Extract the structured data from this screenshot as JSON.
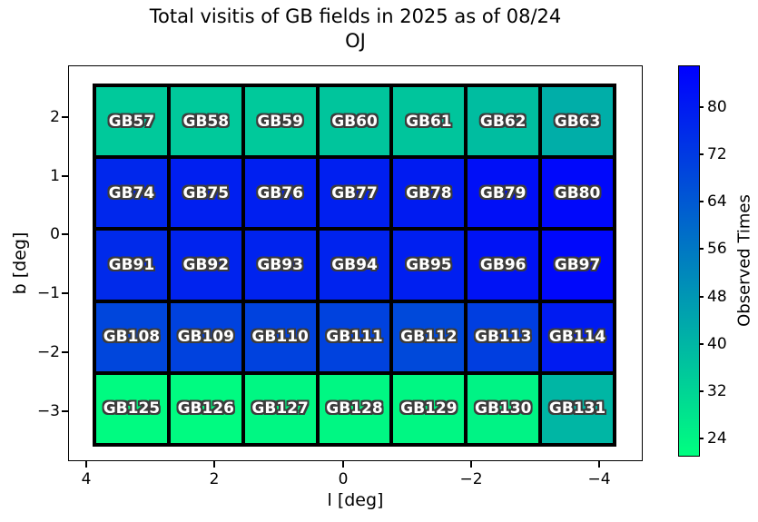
{
  "figure": {
    "title_line1": "Total visitis of GB fields in 2025 as of 08/24",
    "title_line2": "OJ",
    "xlabel": "l [deg]",
    "ylabel": "b [deg]",
    "colorbar_label": "Observed Times"
  },
  "chart_data": {
    "type": "heatmap",
    "title": "Total visitis of GB fields in 2025 as of 08/24 OJ",
    "xlabel": "l [deg]",
    "ylabel": "b [deg]",
    "x_tick_labels": [
      "4",
      "2",
      "0",
      "−2",
      "−4"
    ],
    "y_tick_labels": [
      "2",
      "1",
      "0",
      "−1",
      "−2",
      "−3"
    ],
    "x_axis_inverted": true,
    "grid": {
      "n_rows": 5,
      "n_cols": 7
    },
    "colormap": "winter_r (low=green, high=blue)",
    "color_scale": {
      "vmin": 21,
      "vmax": 87
    },
    "colorbar": {
      "label": "Observed Times",
      "tick_values": [
        80,
        72,
        64,
        56,
        48,
        40,
        32,
        24
      ]
    },
    "rows": [
      {
        "fields": [
          "GB57",
          "GB58",
          "GB59",
          "GB60",
          "GB61",
          "GB62",
          "GB63"
        ],
        "values": [
          35,
          35,
          35,
          36,
          36,
          38,
          42
        ]
      },
      {
        "fields": [
          "GB74",
          "GB75",
          "GB76",
          "GB77",
          "GB78",
          "GB79",
          "GB80"
        ],
        "values": [
          77,
          79,
          79,
          79,
          80,
          83,
          85
        ]
      },
      {
        "fields": [
          "GB91",
          "GB92",
          "GB93",
          "GB94",
          "GB95",
          "GB96",
          "GB97"
        ],
        "values": [
          76,
          78,
          78,
          78,
          79,
          82,
          85
        ]
      },
      {
        "fields": [
          "GB108",
          "GB109",
          "GB110",
          "GB111",
          "GB112",
          "GB113",
          "GB114"
        ],
        "values": [
          69,
          70,
          70,
          70,
          68,
          71,
          80
        ]
      },
      {
        "fields": [
          "GB125",
          "GB126",
          "GB127",
          "GB128",
          "GB129",
          "GB130",
          "GB131"
        ],
        "values": [
          22,
          22,
          23,
          23,
          23,
          24,
          40
        ]
      }
    ]
  }
}
